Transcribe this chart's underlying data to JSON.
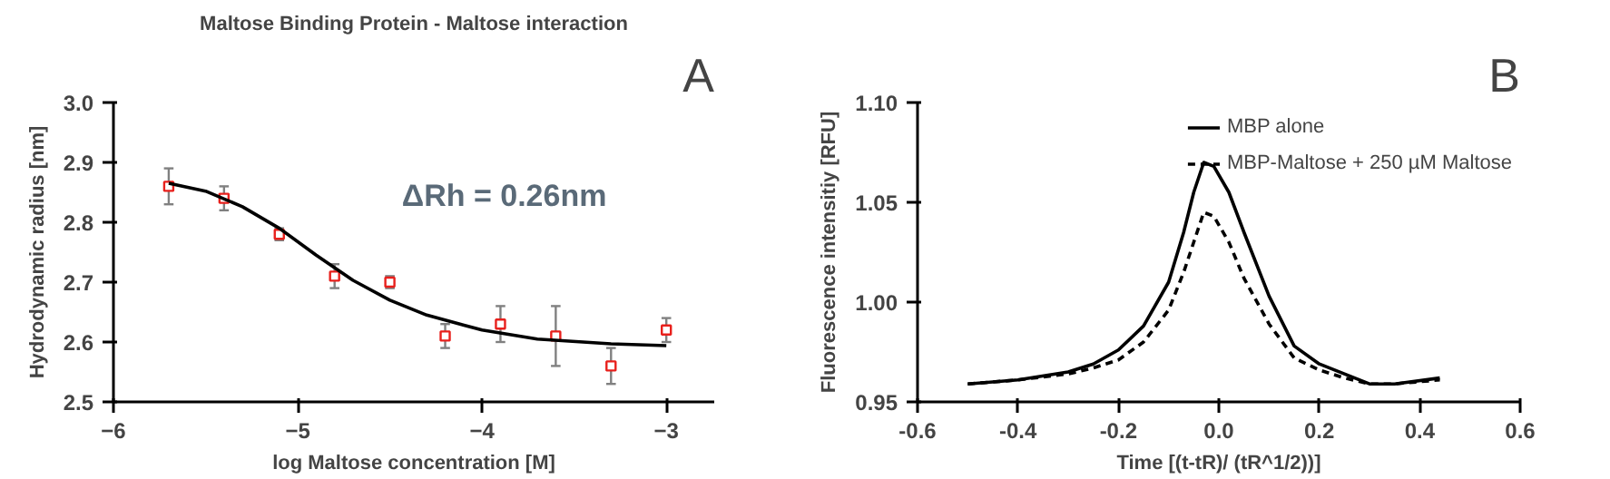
{
  "chart_data": [
    {
      "type": "scatter",
      "title": "Maltose Binding Protein - Maltose interaction",
      "xlabel": "log Maltose concentration [M]",
      "ylabel": "Hydrodynamic radius [nm]",
      "xlim": [
        -6,
        -2.74
      ],
      "xticks": [
        -6,
        -5,
        -4,
        -3
      ],
      "ylim": [
        2.5,
        3.0
      ],
      "yticks": [
        {
          "value": 2.5,
          "label": "2.5"
        },
        2.6,
        2.7,
        2.8,
        2.9,
        {
          "value": 3.0,
          "label": "3.0"
        }
      ],
      "grid": false,
      "annotations": [
        "ΔRh = 0.26nm",
        "A"
      ],
      "series": [
        {
          "type": "scatter",
          "color": "#e8201c",
          "marker": "square",
          "x": [
            -5.7,
            -5.4,
            -5.1,
            -4.8,
            -4.5,
            -4.2,
            -3.9,
            -3.6,
            -3.3,
            -3.0
          ],
          "values": [
            2.86,
            2.84,
            2.78,
            2.71,
            2.7,
            2.61,
            2.63,
            2.61,
            2.56,
            2.62
          ],
          "errors": [
            0.03,
            0.02,
            0.01,
            0.02,
            0.01,
            0.02,
            0.03,
            0.05,
            0.03,
            0.02
          ]
        },
        {
          "type": "line",
          "color": "#000000",
          "line_style": "solid",
          "x": [
            -5.7,
            -5.5,
            -5.3,
            -5.1,
            -4.9,
            -4.7,
            -4.5,
            -4.3,
            -4.0,
            -3.7,
            -3.3,
            -3.0
          ],
          "values": [
            2.865,
            2.852,
            2.826,
            2.79,
            2.745,
            2.703,
            2.67,
            2.645,
            2.62,
            2.605,
            2.597,
            2.594
          ]
        }
      ]
    },
    {
      "type": "line",
      "xlabel": "Time [(t-tR)/ (tR^1/2))]",
      "ylabel": "Fluorescence intensitiy [RFU]",
      "xlim": [
        -0.6,
        0.6
      ],
      "xticks": [
        {
          "value": -0.6,
          "label": "-0.6"
        },
        {
          "value": -0.4,
          "label": "-0.4"
        },
        {
          "value": -0.2,
          "label": "-0.2"
        },
        {
          "value": 0.0,
          "label": "0.0"
        },
        {
          "value": 0.2,
          "label": "0.2"
        },
        {
          "value": 0.4,
          "label": "0.4"
        },
        {
          "value": 0.6,
          "label": "0.6"
        }
      ],
      "ylim": [
        0.95,
        1.1
      ],
      "yticks": [
        {
          "value": 0.95,
          "label": "0.95"
        },
        {
          "value": 1.0,
          "label": "1.00"
        },
        {
          "value": 1.05,
          "label": "1.05"
        },
        {
          "value": 1.1,
          "label": "1.10"
        }
      ],
      "grid": false,
      "legend": "top right",
      "annotations": [
        "B"
      ],
      "series": [
        {
          "name": "MBP alone",
          "color": "#000000",
          "line_style": "solid",
          "x": [
            -0.5,
            -0.4,
            -0.3,
            -0.25,
            -0.2,
            -0.15,
            -0.1,
            -0.07,
            -0.05,
            -0.03,
            -0.01,
            0.02,
            0.05,
            0.1,
            0.15,
            0.2,
            0.25,
            0.3,
            0.35,
            0.44
          ],
          "values": [
            0.959,
            0.961,
            0.965,
            0.969,
            0.976,
            0.988,
            1.01,
            1.035,
            1.055,
            1.07,
            1.068,
            1.055,
            1.035,
            1.003,
            0.978,
            0.969,
            0.964,
            0.959,
            0.959,
            0.962
          ]
        },
        {
          "name": "MBP-Maltose + 250 µM Maltose",
          "color": "#000000",
          "line_style": "dashed",
          "x": [
            -0.5,
            -0.4,
            -0.3,
            -0.25,
            -0.2,
            -0.15,
            -0.1,
            -0.07,
            -0.05,
            -0.03,
            -0.01,
            0.02,
            0.05,
            0.1,
            0.15,
            0.2,
            0.25,
            0.3,
            0.35,
            0.44
          ],
          "values": [
            0.959,
            0.961,
            0.964,
            0.967,
            0.971,
            0.98,
            0.996,
            1.015,
            1.03,
            1.045,
            1.043,
            1.03,
            1.012,
            0.989,
            0.972,
            0.966,
            0.962,
            0.959,
            0.959,
            0.961
          ]
        }
      ]
    }
  ]
}
